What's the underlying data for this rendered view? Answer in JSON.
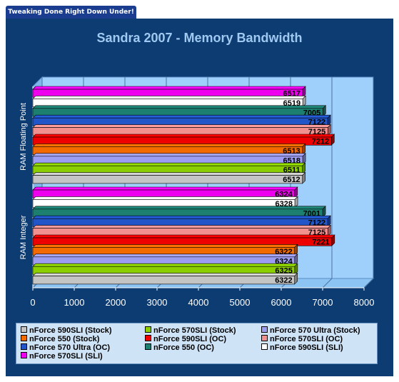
{
  "banner": "Tweaking Done Right Down Under!",
  "chart_data": {
    "type": "bar",
    "orientation": "horizontal",
    "title": "Sandra 2007 - Memory Bandwidth",
    "categories": [
      "RAM Floating Point",
      "RAM Integer"
    ],
    "xlim": [
      0,
      8000
    ],
    "xticks": [
      0,
      1000,
      2000,
      3000,
      4000,
      5000,
      6000,
      7000,
      8000
    ],
    "grid": true,
    "legend_position": "bottom",
    "series": [
      {
        "name": "nForce 590SLI (Stock)",
        "color": "#c4c4c4",
        "values": [
          6512,
          6322
        ]
      },
      {
        "name": "nForce 570SLI (Stock)",
        "color": "#8ccf00",
        "values": [
          6511,
          6325
        ]
      },
      {
        "name": "nForce 570 Ultra (Stock)",
        "color": "#9c9cf2",
        "values": [
          6518,
          6324
        ]
      },
      {
        "name": "nForce 550 (Stock)",
        "color": "#f26a00",
        "values": [
          6513,
          6322
        ]
      },
      {
        "name": "nForce 590SLI (OC)",
        "color": "#ee0000",
        "values": [
          7212,
          7221
        ]
      },
      {
        "name": "nForce 570SLI (OC)",
        "color": "#f29090",
        "values": [
          7125,
          7125
        ]
      },
      {
        "name": "nForce 570 Ultra (OC)",
        "color": "#2256c8",
        "values": [
          7122,
          7122
        ]
      },
      {
        "name": "nForce 550 (OC)",
        "color": "#1d7f70",
        "values": [
          7005,
          7001
        ]
      },
      {
        "name": "nForce 590SLI (SLI)",
        "color": "#ffffff",
        "values": [
          6519,
          6328
        ]
      },
      {
        "name": "nForce 570SLI (SLI)",
        "color": "#ee00ee",
        "values": [
          6517,
          6324
        ]
      }
    ]
  }
}
